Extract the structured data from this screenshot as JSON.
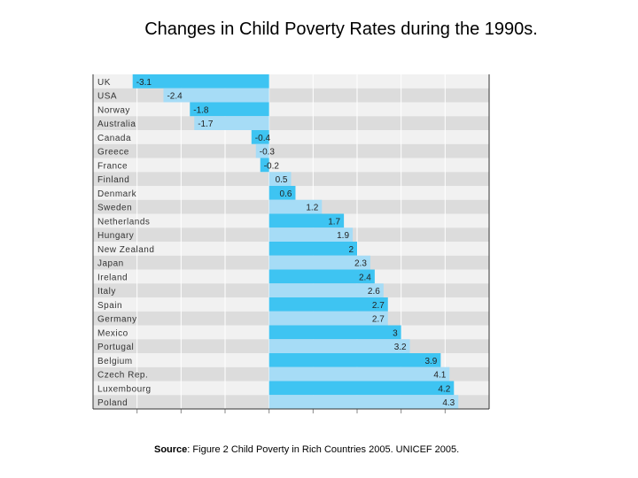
{
  "chart_data": {
    "type": "bar",
    "orientation": "horizontal",
    "title": "Changes in Child Poverty Rates during the 1990s.",
    "xlabel": "",
    "ylabel": "",
    "xlim": [
      -4,
      5
    ],
    "grid": true,
    "categories": [
      "UK",
      "USA",
      "Norway",
      "Australia",
      "Canada",
      "Greece",
      "France",
      "Finland",
      "Denmark",
      "Sweden",
      "Netherlands",
      "Hungary",
      "New Zealand",
      "Japan",
      "Ireland",
      "Italy",
      "Spain",
      "Germany",
      "Mexico",
      "Portugal",
      "Belgium",
      "Czech Rep.",
      "Luxembourg",
      "Poland"
    ],
    "values": [
      -3.1,
      -2.4,
      -1.8,
      -1.7,
      -0.4,
      -0.3,
      -0.2,
      0.5,
      0.6,
      1.2,
      1.7,
      1.9,
      2,
      2.3,
      2.4,
      2.6,
      2.7,
      2.7,
      3,
      3.2,
      3.9,
      4.1,
      4.2,
      4.3
    ],
    "value_labels": [
      "-3.1",
      "-2.4",
      "-1.8",
      "-1.7",
      "-0.4",
      "-0.3",
      "-0.2",
      "0.5",
      "0.6",
      "1.2",
      "1.7",
      "1.9",
      "2",
      "2.3",
      "2.4",
      "2.6",
      "2.7",
      "2.7",
      "3",
      "3.2",
      "3.9",
      "4.1",
      "4.2",
      "4.3"
    ],
    "colors": {
      "bar_dark": "#3ec4f2",
      "bar_light": "#a6dcf6",
      "row_light": "#f1f1f1",
      "row_dark": "#dcdcdc"
    }
  },
  "source": {
    "label": "Source",
    "text": ": Figure 2 Child Poverty in Rich Countries 2005. UNICEF 2005."
  }
}
